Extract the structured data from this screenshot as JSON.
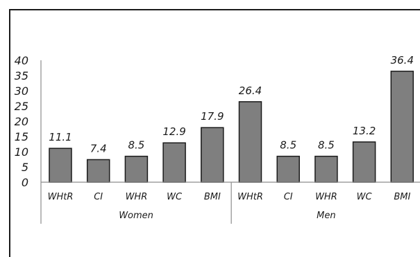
{
  "chart_data": {
    "type": "bar",
    "categories": [
      "WHtR",
      "CI",
      "WHR",
      "WC",
      "BMI",
      "WHtR",
      "CI",
      "WHR",
      "WC",
      "BMI"
    ],
    "groups": [
      {
        "name": "Women",
        "categories": [
          "WHtR",
          "CI",
          "WHR",
          "WC",
          "BMI"
        ]
      },
      {
        "name": "Men",
        "categories": [
          "WHtR",
          "CI",
          "WHR",
          "WC",
          "BMI"
        ]
      }
    ],
    "values": [
      11.1,
      7.4,
      8.5,
      12.9,
      17.9,
      26.4,
      8.5,
      8.5,
      13.2,
      36.4
    ],
    "value_labels": [
      "11.1",
      "7.4",
      "8.5",
      "12.9",
      "17.9",
      "26.4",
      "8.5",
      "8.5",
      "13.2",
      "36.4"
    ],
    "yticks": [
      "0",
      "5",
      "10",
      "15",
      "20",
      "25",
      "30",
      "35",
      "40"
    ],
    "ylim": [
      0,
      40
    ],
    "title": "",
    "xlabel": "",
    "ylabel": "",
    "grid": false,
    "bar_color": "#7f7f7f",
    "bar_edge_color": "#1a1a1a"
  }
}
